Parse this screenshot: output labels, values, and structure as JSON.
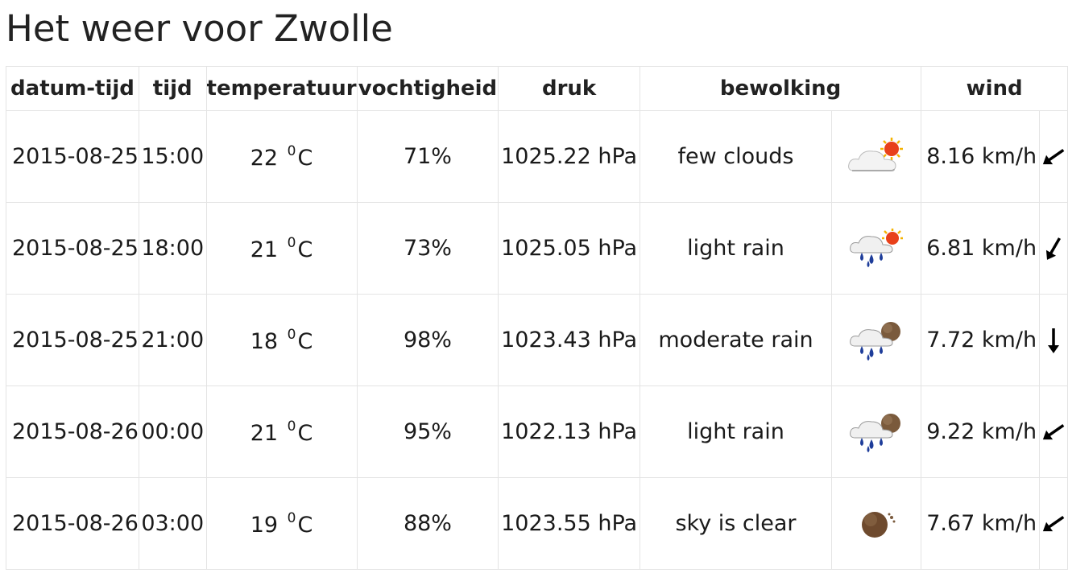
{
  "page": {
    "title": "Het weer voor Zwolle"
  },
  "table": {
    "headers": {
      "datum_tijd": "datum-tijd",
      "tijd": "tijd",
      "temperatuur": "temperatuur",
      "vochtigheid": "vochtigheid",
      "druk": "druk",
      "bewolking": "bewolking",
      "wind": "wind"
    },
    "temp_unit": "C",
    "temp_sup": "0",
    "rows": [
      {
        "date": "2015-08-25",
        "time": "15:00",
        "temp": "22",
        "humidity": "71%",
        "pressure": "1025.22 hPa",
        "clouds": "few clouds",
        "icon": "few-clouds-day-icon",
        "wind": "8.16 km/h",
        "wind_dir": "south-west-arrow-icon"
      },
      {
        "date": "2015-08-25",
        "time": "18:00",
        "temp": "21",
        "humidity": "73%",
        "pressure": "1025.05 hPa",
        "clouds": "light rain",
        "icon": "rain-day-icon",
        "wind": "6.81 km/h",
        "wind_dir": "south-south-west-arrow-icon"
      },
      {
        "date": "2015-08-25",
        "time": "21:00",
        "temp": "18",
        "humidity": "98%",
        "pressure": "1023.43 hPa",
        "clouds": "moderate rain",
        "icon": "rain-night-icon",
        "wind": "7.72 km/h",
        "wind_dir": "south-arrow-icon"
      },
      {
        "date": "2015-08-26",
        "time": "00:00",
        "temp": "21",
        "humidity": "95%",
        "pressure": "1022.13 hPa",
        "clouds": "light rain",
        "icon": "rain-night-icon",
        "wind": "9.22 km/h",
        "wind_dir": "south-west-arrow-icon"
      },
      {
        "date": "2015-08-26",
        "time": "03:00",
        "temp": "19",
        "humidity": "88%",
        "pressure": "1023.55 hPa",
        "clouds": "sky is clear",
        "icon": "clear-night-icon",
        "wind": "7.67 km/h",
        "wind_dir": "south-west-arrow-icon"
      }
    ]
  }
}
